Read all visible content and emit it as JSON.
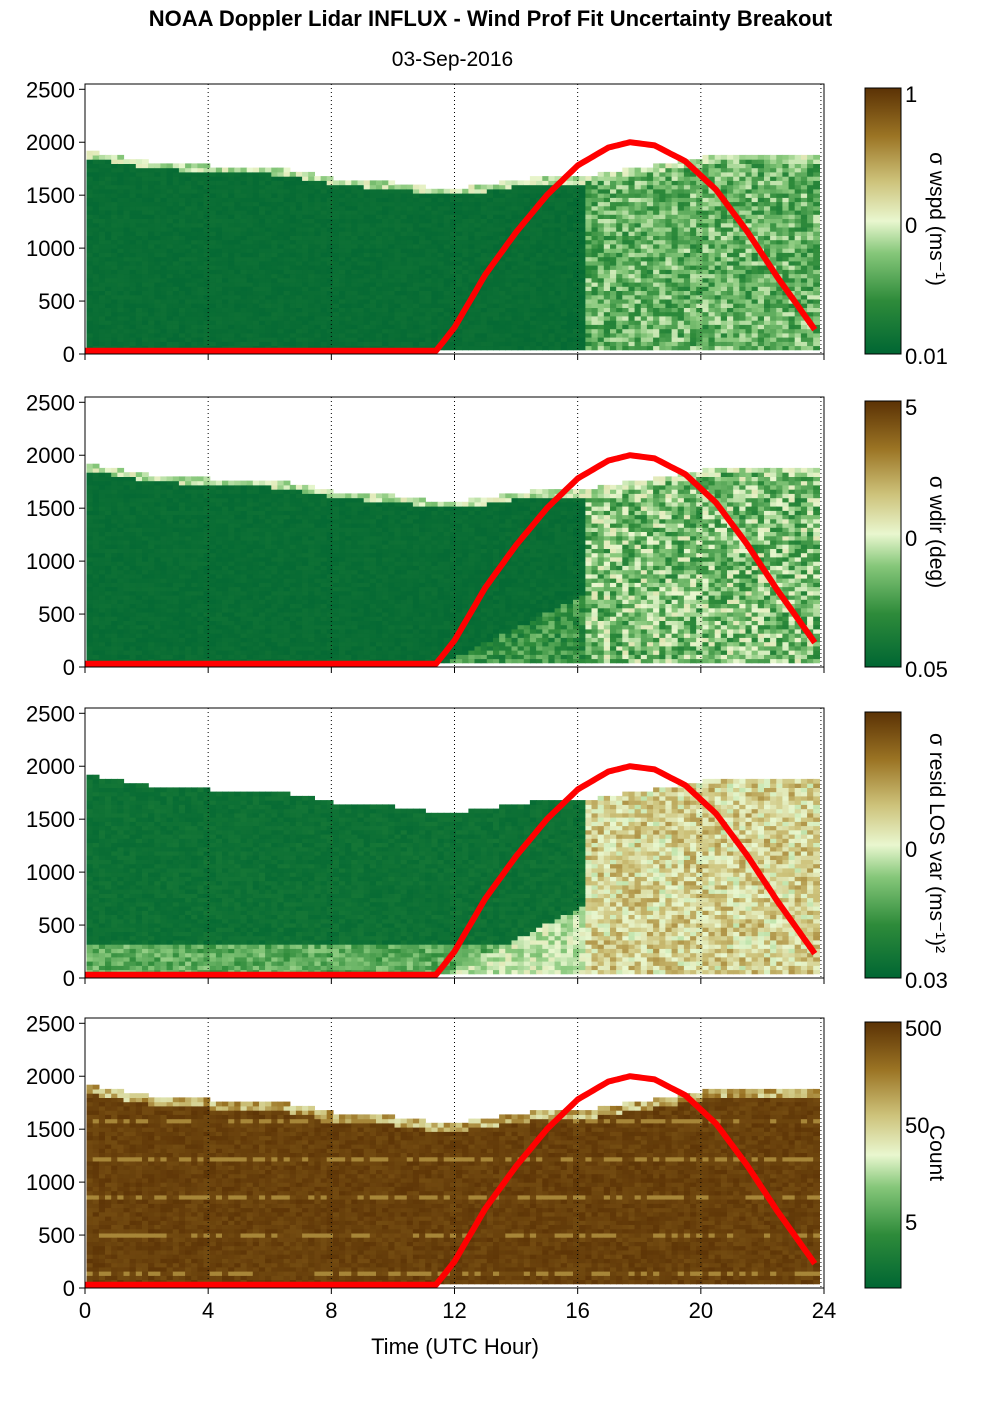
{
  "title": "NOAA Doppler Lidar INFLUX - Wind Prof Fit Uncertainty Breakout",
  "subtitle": "03-Sep-2016",
  "chart_data": {
    "type": "heatmap",
    "x_label": "Time (UTC Hour)",
    "x_ticks": [
      "0",
      "4",
      "8",
      "12",
      "16",
      "20",
      "24"
    ],
    "x_range": [
      0,
      24
    ],
    "y_ticks": [
      "0",
      "500",
      "1000",
      "1500",
      "2000",
      "2500"
    ],
    "y_range": [
      0,
      2550
    ],
    "vertical_grid_hours": [
      4,
      8,
      12,
      16,
      20,
      23.9
    ],
    "colors": {
      "low": "#006633",
      "mid": "#e8f5c8",
      "high": "#6b3a07",
      "sun_curve": "#ff0000"
    },
    "data_top_height_m": {
      "hours": [
        0,
        1,
        2,
        3,
        4,
        5,
        6,
        7,
        8,
        9,
        10,
        11,
        12,
        13,
        14,
        15,
        16,
        17,
        18,
        19,
        20,
        21,
        22,
        23,
        23.8
      ],
      "heights": [
        1900,
        1850,
        1800,
        1780,
        1760,
        1740,
        1740,
        1700,
        1640,
        1620,
        1600,
        1560,
        1550,
        1580,
        1630,
        1660,
        1650,
        1700,
        1750,
        1790,
        1840,
        1880,
        1870,
        1860,
        1850
      ]
    },
    "solar_elevation_curve": {
      "description": "red sun curve",
      "hours": [
        0,
        11.4,
        12,
        13,
        14,
        15,
        16,
        17,
        17.7,
        18.5,
        19.5,
        20.5,
        21.5,
        22.5,
        23.8
      ],
      "heights_m": [
        30,
        30,
        250,
        750,
        1150,
        1500,
        1780,
        1950,
        2000,
        1970,
        1820,
        1550,
        1160,
        720,
        190
      ]
    },
    "panels": [
      {
        "colorbar_label": "σ wspd (ms⁻¹)",
        "colorbar_ticks": [
          "1",
          "0",
          "0.01"
        ],
        "pattern": "day-noise",
        "day_start_hour": 16.2,
        "day_level": 0.32
      },
      {
        "colorbar_label": "σ wdir (deg)",
        "colorbar_ticks": [
          "5",
          "0",
          "0.05"
        ],
        "pattern": "day-noise",
        "day_start_hour": 11.4,
        "day_level": 0.4
      },
      {
        "colorbar_label": "σ resid LOS var (ms⁻¹)²",
        "colorbar_ticks": [
          "0",
          "0.03"
        ],
        "pattern": "day-high",
        "day_start_hour": 11.4,
        "day_level": 0.62
      },
      {
        "colorbar_label": "Count",
        "colorbar_ticks": [
          "500",
          "50",
          "5"
        ],
        "pattern": "count",
        "day_start_hour": 0,
        "day_level": 0.95
      }
    ]
  }
}
